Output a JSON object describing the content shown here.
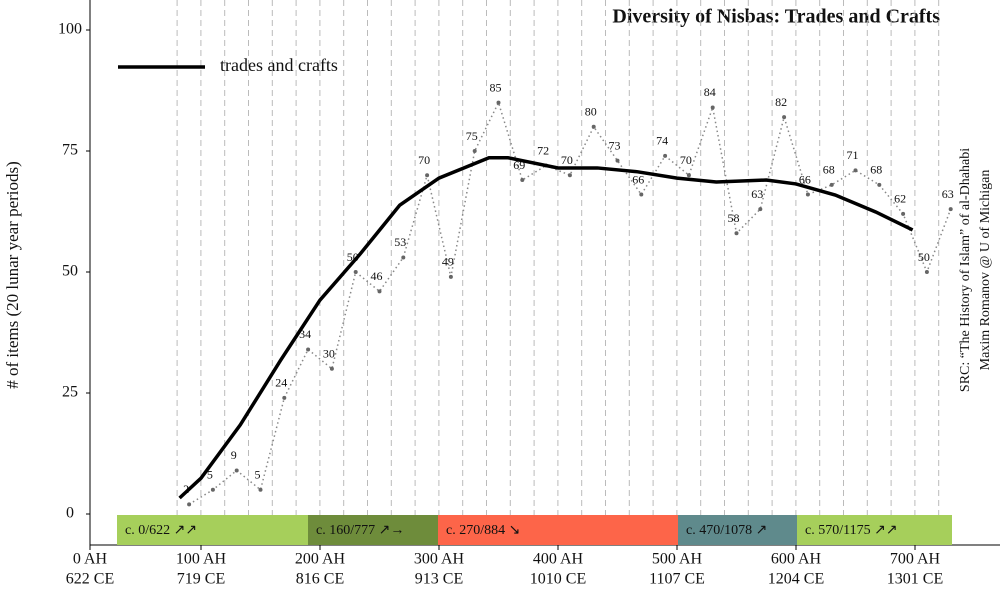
{
  "chart_data": {
    "type": "line",
    "title": "Diversity of Nisbas: Trades and Crafts",
    "y_label": "# of items (20 lunar year periods)",
    "source": [
      "SRC: “The History of Islam” of al-Dhahabi",
      "Maxim Romanov @ U of Michigan"
    ],
    "xlim": [
      0,
      765
    ],
    "ylim": [
      0,
      100
    ],
    "yticks": [
      0,
      25,
      50,
      75,
      100
    ],
    "xticks": [
      {
        "value": 0,
        "label": "0 AH"
      },
      {
        "value": 100,
        "label": "100 AH"
      },
      {
        "value": 200,
        "label": "200 AH"
      },
      {
        "value": 300,
        "label": "300 AH"
      },
      {
        "value": 400,
        "label": "400 AH"
      },
      {
        "value": 500,
        "label": "500 AH"
      },
      {
        "value": 600,
        "label": "600 AH"
      },
      {
        "value": 700,
        "label": "700 AH"
      }
    ],
    "xtick_sublabels": [
      "622 CE",
      "719 CE",
      "816 CE",
      "913 CE",
      "1010 CE",
      "1107 CE",
      "1204 CE",
      "1301 CE"
    ],
    "series": [
      {
        "color": "#888888",
        "style": "dotted",
        "x": [
          90,
          110,
          130,
          150,
          170,
          190,
          210,
          230,
          250,
          270,
          290,
          310,
          330,
          350,
          370,
          390,
          410,
          430,
          450,
          470,
          490,
          510,
          530,
          550,
          570,
          590,
          610,
          630,
          650,
          670,
          690,
          710,
          730
        ],
        "values": [
          2,
          5,
          9,
          5,
          24,
          34,
          30,
          50,
          46,
          53,
          70,
          49,
          75,
          85,
          69,
          72,
          70,
          80,
          73,
          66,
          74,
          70,
          84,
          58,
          63,
          82,
          66,
          68,
          71,
          68,
          62,
          50,
          63
        ]
      },
      {
        "name": "trades and crafts",
        "color": "#000000",
        "style": "solid",
        "x": [
          82,
          100,
          133,
          167,
          200,
          233,
          267,
          300,
          342,
          358,
          400,
          433,
          467,
          500,
          533,
          575,
          600,
          633,
          667,
          698
        ],
        "values": [
          3.3,
          7.4,
          18.4,
          31.8,
          44.2,
          53.5,
          63.8,
          69.4,
          73.6,
          73.6,
          71.5,
          71.5,
          70.7,
          69.4,
          68.6,
          69,
          68.2,
          65.9,
          62.4,
          58.7
        ]
      }
    ],
    "periods": [
      {
        "label": "c. 0/622 ↗↗",
        "color": "#a6cf5b"
      },
      {
        "label": "c. 160/777 ↗→",
        "color": "#6e8c3b"
      },
      {
        "label": "c. 270/884 ↘",
        "color": "#fd6549"
      },
      {
        "label": "c. 470/1078 ↗",
        "color": "#5f8a8c"
      },
      {
        "label": "c. 570/1175 ↗↗",
        "color": "#a6cf5b"
      }
    ]
  }
}
